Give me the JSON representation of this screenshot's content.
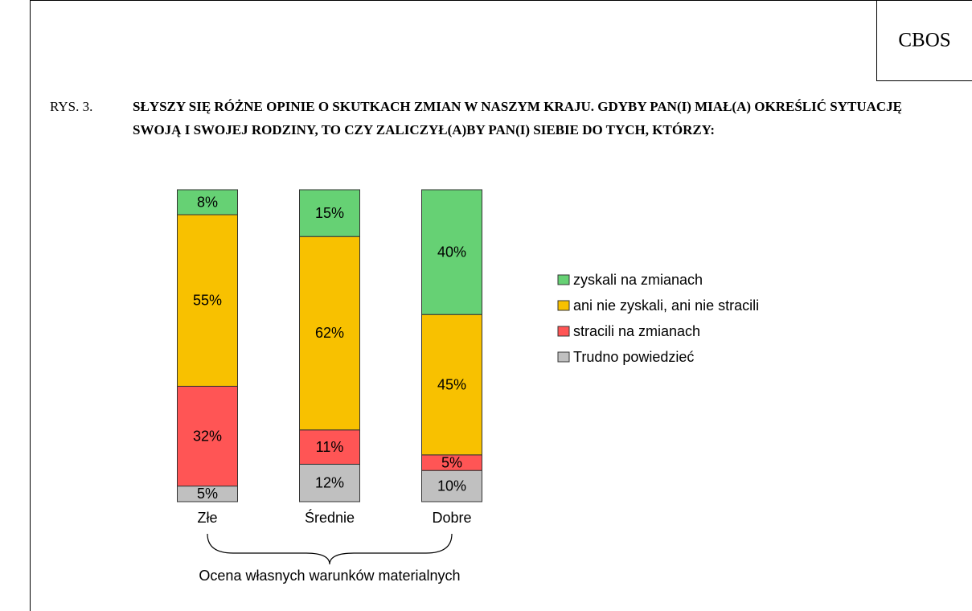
{
  "publisher": "CBOS",
  "figure_label": "RYS. 3.",
  "chart_data": {
    "type": "stacked_bar",
    "title": "SŁYSZY SIĘ RÓŻNE OPINIE O SKUTKACH ZMIAN W NASZYM KRAJU. GDYBY PAN(I) MIAŁ(A) OKREŚLIĆ SYTUACJĘ SWOJĄ I SWOJEJ RODZINY, TO CZY ZALICZYŁ(A)BY PAN(I) SIEBIE DO TYCH, KTÓRZY:",
    "x_label": "Ocena własnych warunków materialnych",
    "categories": [
      "Złe",
      "Średnie",
      "Dobre"
    ],
    "ylim": [
      0,
      100
    ],
    "series": [
      {
        "name": "zyskali na zmianach",
        "color": "#66d174",
        "values": [
          8,
          15,
          40
        ],
        "value_labels": [
          "8%",
          "15%",
          "40%"
        ]
      },
      {
        "name": "ani nie zyskali, ani nie stracili",
        "color": "#f8c100",
        "values": [
          55,
          62,
          45
        ],
        "value_labels": [
          "55%",
          "62%",
          "45%"
        ]
      },
      {
        "name": "stracili na zmianach",
        "color": "#ff5555",
        "values": [
          32,
          11,
          5
        ],
        "value_labels": [
          "32%",
          "11%",
          "5%"
        ]
      },
      {
        "name": "Trudno powiedzieć",
        "color": "#c0c0c0",
        "values": [
          5,
          12,
          10
        ],
        "value_labels": [
          "5%",
          "12%",
          "10%"
        ]
      }
    ]
  }
}
